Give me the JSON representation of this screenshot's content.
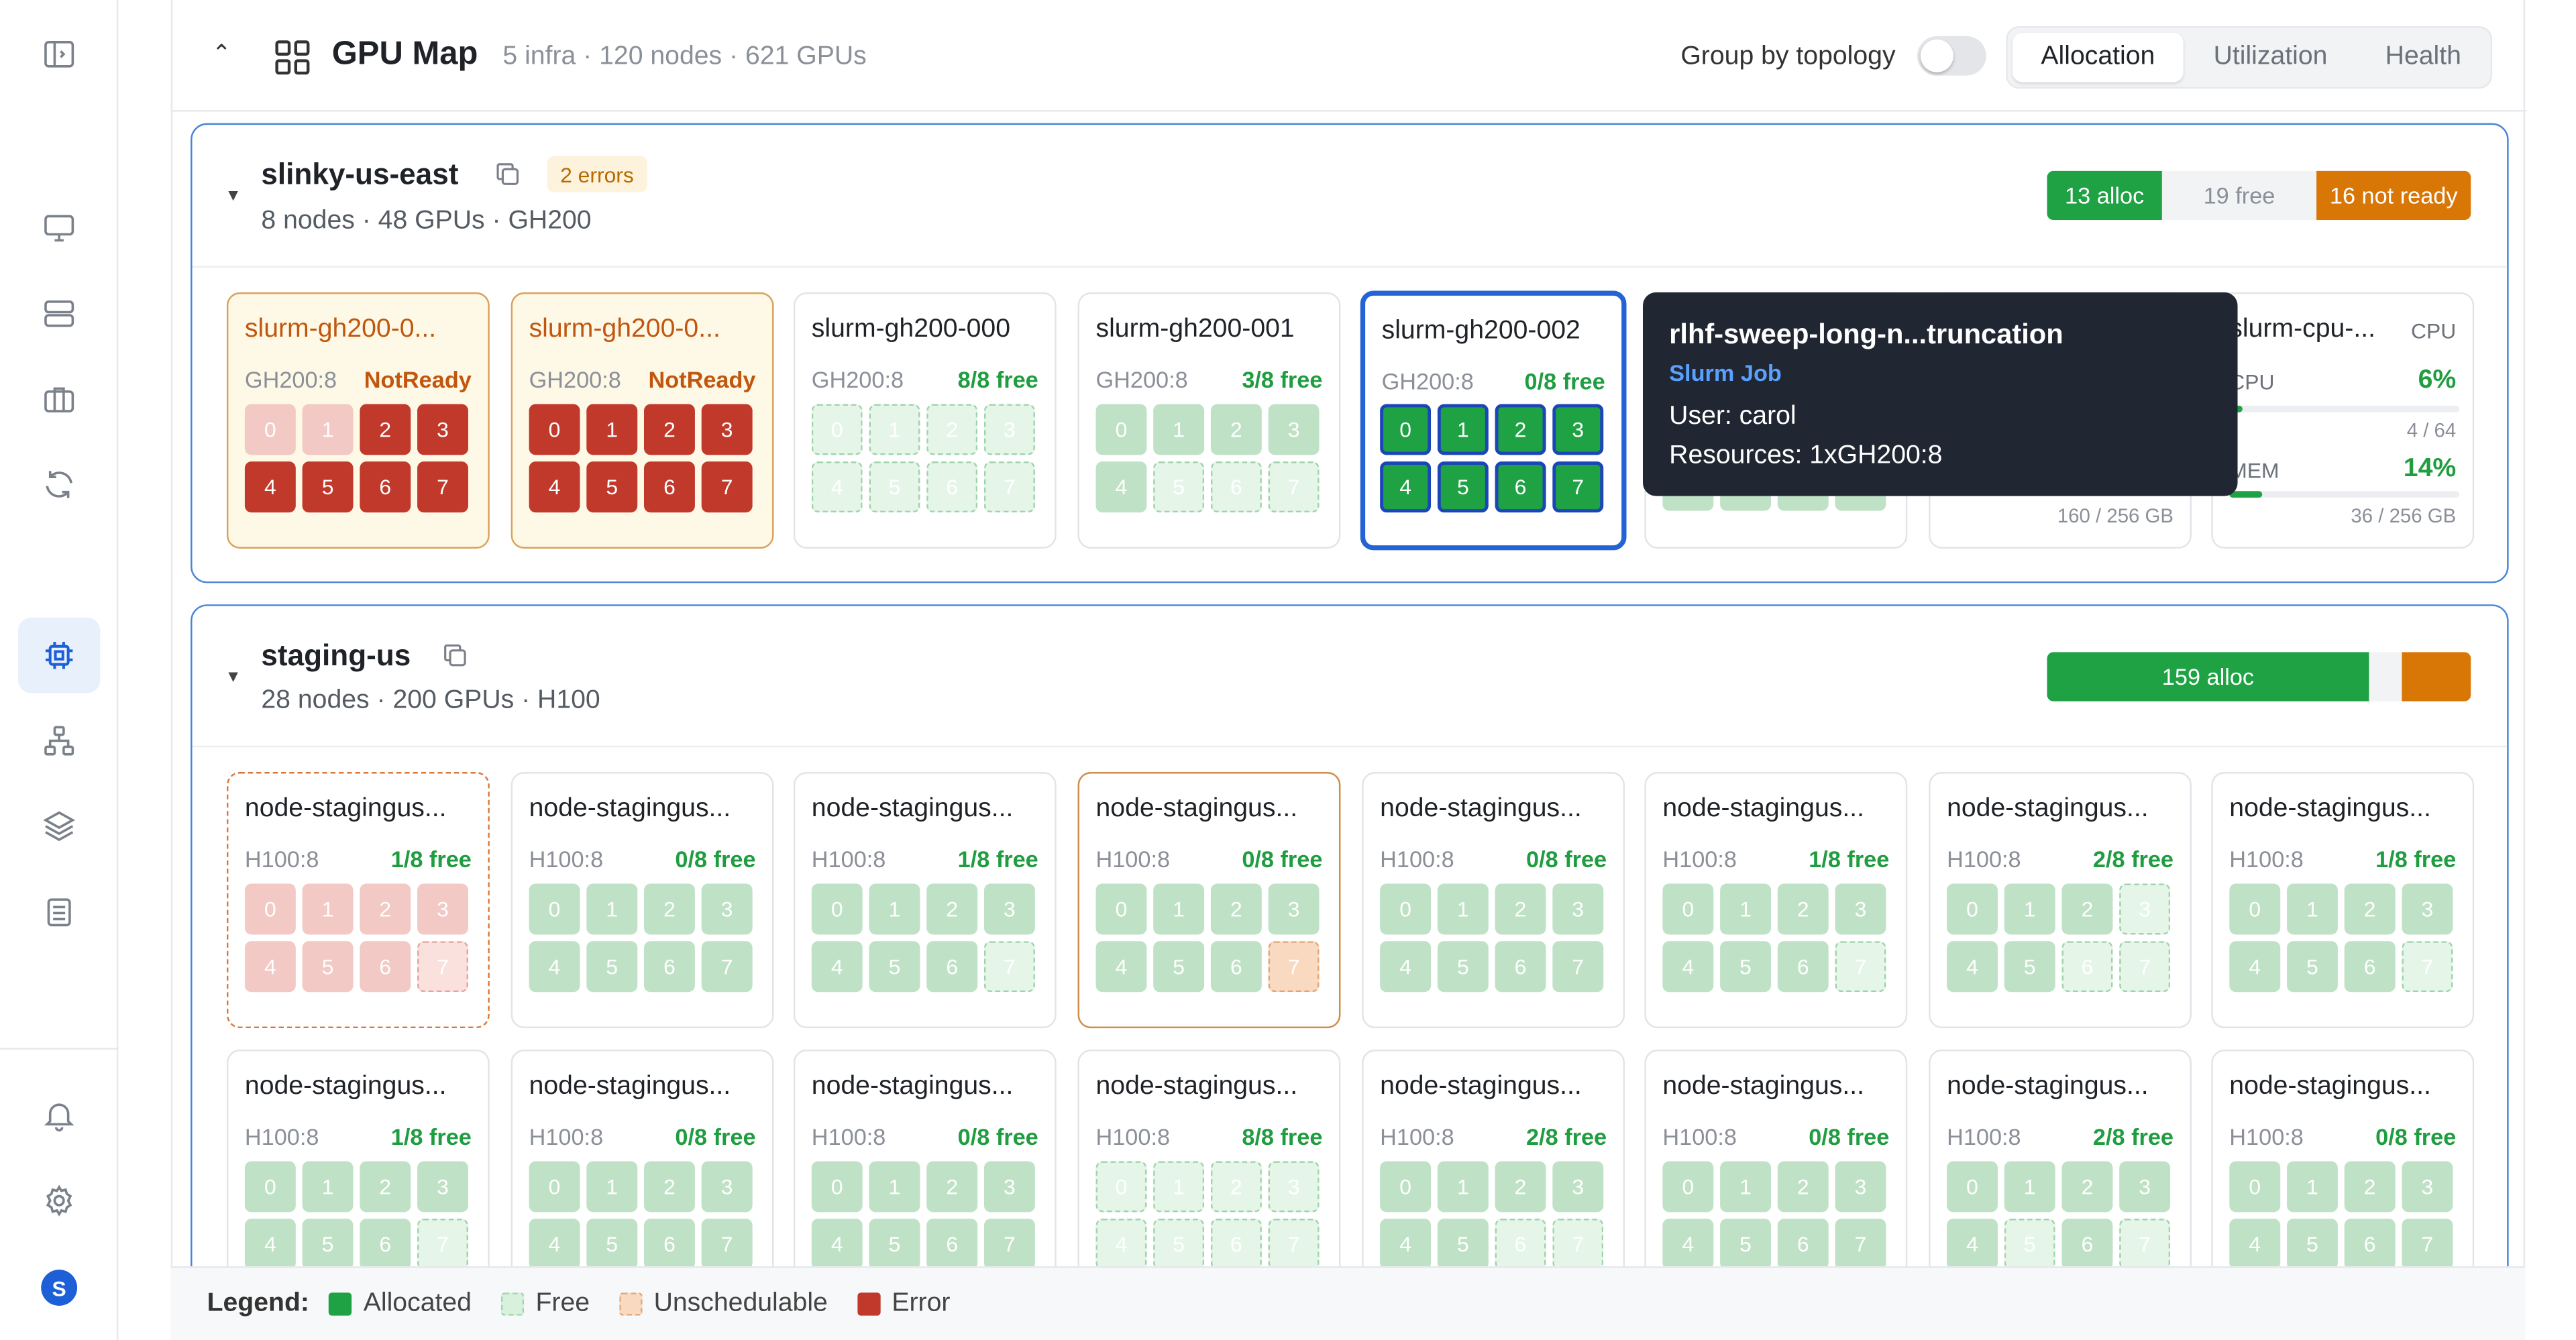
{
  "header": {
    "title": "GPU Map",
    "summary": "5 infra · 120 nodes · 621 GPUs",
    "toggle_label": "Group by topology",
    "toggle_on": false,
    "views": [
      "Allocation",
      "Utilization",
      "Health"
    ],
    "active_view": "Allocation"
  },
  "sidebar": {
    "icons": [
      "sidebar-toggle-icon",
      "monitor-icon",
      "server-icon",
      "briefcase-icon",
      "refresh-icon",
      "chip-icon",
      "topology-icon",
      "layers-icon",
      "clipboard-icon",
      "bell-icon",
      "gear-icon"
    ],
    "active": "chip-icon",
    "avatar_letter": "S"
  },
  "clusters": [
    {
      "name": "slinky-us-east",
      "errors": "2 errors",
      "subtitle": "8 nodes · 48 GPUs · GH200",
      "alloc_label": "13 alloc",
      "free_label": "19 free",
      "notready_label": "16 not ready",
      "nodes": [
        {
          "name": "slurm-gh200-0...",
          "type": "GH200:8",
          "status": "NotReady",
          "gpus": [
            "0",
            "1",
            "2",
            "3",
            "4",
            "5",
            "6",
            "7"
          ]
        },
        {
          "name": "slurm-gh200-0...",
          "type": "GH200:8",
          "status": "NotReady",
          "gpus": [
            "0",
            "1",
            "2",
            "3",
            "4",
            "5",
            "6",
            "7"
          ]
        },
        {
          "name": "slurm-gh200-000",
          "type": "GH200:8",
          "status": "8/8 free",
          "gpus": [
            "0",
            "1",
            "2",
            "3",
            "4",
            "5",
            "6",
            "7"
          ]
        },
        {
          "name": "slurm-gh200-001",
          "type": "GH200:8",
          "status": "3/8 free",
          "gpus": [
            "0",
            "1",
            "2",
            "3",
            "4",
            "5",
            "6",
            "7"
          ]
        },
        {
          "name": "slurm-gh200-002",
          "type": "GH200:8",
          "status": "0/8 free",
          "gpus": [
            "0",
            "1",
            "2",
            "3",
            "4",
            "5",
            "6",
            "7"
          ]
        }
      ],
      "cpu_node": {
        "name": "slurm-cpu-...",
        "badge": "CPU",
        "cpu_label": "CPU",
        "cpu_pct": "6%",
        "cpu_pct_value": 6,
        "cpu_used": "4 / 64",
        "mem_label": "MEM",
        "mem_pct": "14%",
        "mem_pct_value": 14,
        "mem_used": "36 / 256 GB"
      },
      "hidden_card_used": "160 / 256 GB"
    },
    {
      "name": "staging-us",
      "subtitle": "28 nodes · 200 GPUs · H100",
      "alloc_label": "159 alloc",
      "rows": [
        [
          {
            "name": "node-stagingus...",
            "type": "H100:8",
            "status": "1/8 free"
          },
          {
            "name": "node-stagingus...",
            "type": "H100:8",
            "status": "0/8 free"
          },
          {
            "name": "node-stagingus...",
            "type": "H100:8",
            "status": "1/8 free"
          },
          {
            "name": "node-stagingus...",
            "type": "H100:8",
            "status": "0/8 free"
          },
          {
            "name": "node-stagingus...",
            "type": "H100:8",
            "status": "0/8 free"
          },
          {
            "name": "node-stagingus...",
            "type": "H100:8",
            "status": "1/8 free"
          },
          {
            "name": "node-stagingus...",
            "type": "H100:8",
            "status": "2/8 free"
          },
          {
            "name": "node-stagingus...",
            "type": "H100:8",
            "status": "1/8 free"
          }
        ],
        [
          {
            "name": "node-stagingus...",
            "type": "H100:8",
            "status": "1/8 free"
          },
          {
            "name": "node-stagingus...",
            "type": "H100:8",
            "status": "0/8 free"
          },
          {
            "name": "node-stagingus...",
            "type": "H100:8",
            "status": "0/8 free"
          },
          {
            "name": "node-stagingus...",
            "type": "H100:8",
            "status": "8/8 free"
          },
          {
            "name": "node-stagingus...",
            "type": "H100:8",
            "status": "2/8 free"
          },
          {
            "name": "node-stagingus...",
            "type": "H100:8",
            "status": "0/8 free"
          },
          {
            "name": "node-stagingus...",
            "type": "H100:8",
            "status": "2/8 free"
          },
          {
            "name": "node-stagingus...",
            "type": "H100:8",
            "status": "0/8 free"
          }
        ]
      ]
    }
  ],
  "gpu_labels": [
    "0",
    "1",
    "2",
    "3",
    "4",
    "5",
    "6",
    "7"
  ],
  "tooltip": {
    "title": "rlhf-sweep-long-n...truncation",
    "kind": "Slurm Job",
    "user": "User: carol",
    "resources": "Resources: 1xGH200:8"
  },
  "legend": {
    "title": "Legend:",
    "allocated": "Allocated",
    "free": "Free",
    "unschedulable": "Unschedulable",
    "error": "Error"
  },
  "colors": {
    "allocated": "#1fa244",
    "free": "#e5f6e8",
    "unschedulable": "#f9d9bf",
    "error": "#c0392b",
    "not_ready": "#d97706",
    "accent": "#2463d6"
  }
}
